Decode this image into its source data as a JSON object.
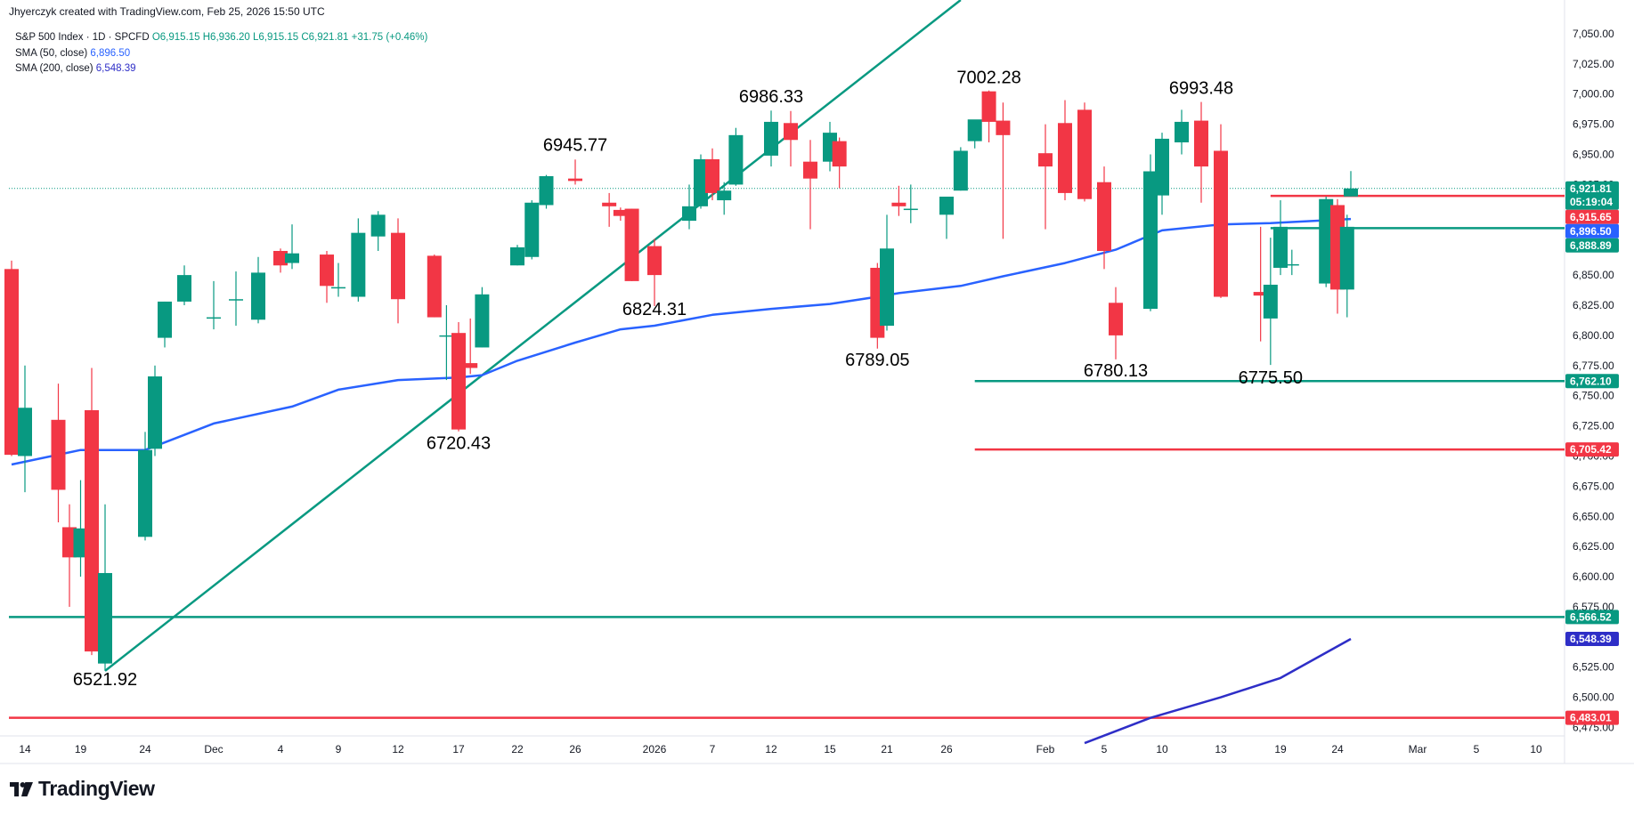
{
  "header": {
    "attribution": "Jhyerczyk created with TradingView.com, Feb 25, 2026 15:50 UTC"
  },
  "legend": {
    "symbol": "S&P 500 Index · 1D · SPCFD",
    "ohlc": "O6,915.15 H6,936.20 L6,915.15 C6,921.81 +31.75 (+0.46%)",
    "sma50_label": "SMA (50, close)",
    "sma50_value": "6,896.50",
    "sma200_label": "SMA (200, close)",
    "sma200_value": "6,548.39"
  },
  "brand": {
    "name": "TradingView",
    "logo": "tradingview-logo-icon"
  },
  "colors": {
    "up": "#089981",
    "down": "#f23645",
    "sma50": "#2962ff",
    "sma200": "#2e2ec7",
    "trendline": "#089981",
    "support": "#089981",
    "resistance": "#f23645"
  },
  "chart_data": {
    "type": "candlestick",
    "y_ticks": [
      "7,050.00",
      "7,025.00",
      "7,000.00",
      "6,975.00",
      "6,950.00",
      "6,925.00",
      "6,900.00",
      "6,875.00",
      "6,850.00",
      "6,825.00",
      "6,800.00",
      "6,775.00",
      "6,750.00",
      "6,725.00",
      "6,700.00",
      "6,675.00",
      "6,650.00",
      "6,625.00",
      "6,600.00",
      "6,575.00",
      "6,550.00",
      "6,525.00",
      "6,500.00",
      "6,475.00"
    ],
    "y_tick_values": [
      7050,
      7025,
      7000,
      6975,
      6950,
      6925,
      6900,
      6875,
      6850,
      6825,
      6800,
      6775,
      6750,
      6725,
      6700,
      6675,
      6650,
      6625,
      6600,
      6575,
      6550,
      6525,
      6500,
      6475
    ],
    "ylim": [
      6468,
      7078
    ],
    "x_ticks": [
      {
        "label": "14",
        "date": "2025-11-14"
      },
      {
        "label": "19",
        "date": "2025-11-19"
      },
      {
        "label": "24",
        "date": "2025-11-24"
      },
      {
        "label": "Dec",
        "date": "2025-12-01"
      },
      {
        "label": "4",
        "date": "2025-12-04"
      },
      {
        "label": "9",
        "date": "2025-12-09"
      },
      {
        "label": "12",
        "date": "2025-12-12"
      },
      {
        "label": "17",
        "date": "2025-12-17"
      },
      {
        "label": "22",
        "date": "2025-12-22"
      },
      {
        "label": "26",
        "date": "2025-12-26"
      },
      {
        "label": "2026",
        "date": "2026-01-02"
      },
      {
        "label": "7",
        "date": "2026-01-07"
      },
      {
        "label": "12",
        "date": "2026-01-12"
      },
      {
        "label": "15",
        "date": "2026-01-15"
      },
      {
        "label": "21",
        "date": "2026-01-21"
      },
      {
        "label": "26",
        "date": "2026-01-26"
      },
      {
        "label": "Feb",
        "date": "2026-02-02"
      },
      {
        "label": "5",
        "date": "2026-02-05"
      },
      {
        "label": "10",
        "date": "2026-02-10"
      },
      {
        "label": "13",
        "date": "2026-02-13"
      },
      {
        "label": "19",
        "date": "2026-02-19"
      },
      {
        "label": "24",
        "date": "2026-02-24"
      },
      {
        "label": "Mar",
        "date": "2026-03-02"
      },
      {
        "label": "5",
        "date": "2026-03-05"
      },
      {
        "label": "10",
        "date": "2026-03-10"
      }
    ],
    "candles": [
      {
        "d": "2025-11-13",
        "o": 6855,
        "h": 6862,
        "l": 6700,
        "c": 6701
      },
      {
        "d": "2025-11-14",
        "o": 6700,
        "h": 6775,
        "l": 6670,
        "c": 6740
      },
      {
        "d": "2025-11-17",
        "o": 6730,
        "h": 6760,
        "l": 6645,
        "c": 6672
      },
      {
        "d": "2025-11-18",
        "o": 6641,
        "h": 6660,
        "l": 6575,
        "c": 6616
      },
      {
        "d": "2025-11-19",
        "o": 6616,
        "h": 6680,
        "l": 6600,
        "c": 6640
      },
      {
        "d": "2025-11-20",
        "o": 6738,
        "h": 6773,
        "l": 6535,
        "c": 6538
      },
      {
        "d": "2025-11-21",
        "o": 6528,
        "h": 6660,
        "l": 6521.92,
        "c": 6603
      },
      {
        "d": "2025-11-24",
        "o": 6633,
        "h": 6720,
        "l": 6630,
        "c": 6705
      },
      {
        "d": "2025-11-25",
        "o": 6706,
        "h": 6775,
        "l": 6700,
        "c": 6766
      },
      {
        "d": "2025-11-26",
        "o": 6798,
        "h": 6828,
        "l": 6790,
        "c": 6828
      },
      {
        "d": "2025-11-28",
        "o": 6828,
        "h": 6858,
        "l": 6825,
        "c": 6850
      },
      {
        "d": "2025-12-01",
        "o": 6815,
        "h": 6845,
        "l": 6805,
        "c": 6815
      },
      {
        "d": "2025-12-02",
        "o": 6830,
        "h": 6853,
        "l": 6808,
        "c": 6830
      },
      {
        "d": "2025-12-03",
        "o": 6813,
        "h": 6865,
        "l": 6810,
        "c": 6852
      },
      {
        "d": "2025-12-04",
        "o": 6870,
        "h": 6872,
        "l": 6852,
        "c": 6858
      },
      {
        "d": "2025-12-05",
        "o": 6860,
        "h": 6892,
        "l": 6855,
        "c": 6868
      },
      {
        "d": "2025-12-08",
        "o": 6867,
        "h": 6870,
        "l": 6827,
        "c": 6841
      },
      {
        "d": "2025-12-09",
        "o": 6840,
        "h": 6860,
        "l": 6832,
        "c": 6840
      },
      {
        "d": "2025-12-10",
        "o": 6832,
        "h": 6897,
        "l": 6828,
        "c": 6885
      },
      {
        "d": "2025-12-11",
        "o": 6882,
        "h": 6903,
        "l": 6870,
        "c": 6900
      },
      {
        "d": "2025-12-12",
        "o": 6885,
        "h": 6897,
        "l": 6810,
        "c": 6830
      },
      {
        "d": "2025-12-15",
        "o": 6866,
        "h": 6867,
        "l": 6815,
        "c": 6815
      },
      {
        "d": "2025-12-16",
        "o": 6800,
        "h": 6825,
        "l": 6763,
        "c": 6800
      },
      {
        "d": "2025-12-17",
        "o": 6802,
        "h": 6811,
        "l": 6720.43,
        "c": 6722
      },
      {
        "d": "2025-12-18",
        "o": 6777,
        "h": 6814,
        "l": 6768,
        "c": 6773
      },
      {
        "d": "2025-12-19",
        "o": 6790,
        "h": 6840,
        "l": 6790,
        "c": 6834
      },
      {
        "d": "2025-12-22",
        "o": 6858,
        "h": 6875,
        "l": 6858,
        "c": 6873
      },
      {
        "d": "2025-12-23",
        "o": 6865,
        "h": 6912,
        "l": 6863,
        "c": 6910
      },
      {
        "d": "2025-12-24",
        "o": 6908,
        "h": 6933,
        "l": 6905,
        "c": 6932
      },
      {
        "d": "2025-12-26",
        "o": 6930,
        "h": 6945.77,
        "l": 6925,
        "c": 6928
      },
      {
        "d": "2025-12-29",
        "o": 6910,
        "h": 6918,
        "l": 6890,
        "c": 6907
      },
      {
        "d": "2025-12-30",
        "o": 6904,
        "h": 6906,
        "l": 6895,
        "c": 6899
      },
      {
        "d": "2025-12-31",
        "o": 6905,
        "h": 6905,
        "l": 6845,
        "c": 6845
      },
      {
        "d": "2026-01-02",
        "o": 6874,
        "h": 6880,
        "l": 6824.31,
        "c": 6850
      },
      {
        "d": "2026-01-05",
        "o": 6895,
        "h": 6925,
        "l": 6888,
        "c": 6907
      },
      {
        "d": "2026-01-06",
        "o": 6907,
        "h": 6950,
        "l": 6905,
        "c": 6946
      },
      {
        "d": "2026-01-07",
        "o": 6946,
        "h": 6955,
        "l": 6912,
        "c": 6918
      },
      {
        "d": "2026-01-08",
        "o": 6912,
        "h": 6927,
        "l": 6900,
        "c": 6920
      },
      {
        "d": "2026-01-09",
        "o": 6925,
        "h": 6972,
        "l": 6924,
        "c": 6966
      },
      {
        "d": "2026-01-12",
        "o": 6949,
        "h": 6986.33,
        "l": 6940,
        "c": 6977
      },
      {
        "d": "2026-01-13",
        "o": 6976,
        "h": 6986,
        "l": 6940,
        "c": 6962
      },
      {
        "d": "2026-01-14",
        "o": 6944,
        "h": 6962,
        "l": 6888,
        "c": 6930
      },
      {
        "d": "2026-01-15",
        "o": 6944,
        "h": 6977,
        "l": 6936,
        "c": 6968
      },
      {
        "d": "2026-01-16",
        "o": 6961,
        "h": 6964,
        "l": 6922,
        "c": 6940
      },
      {
        "d": "2026-01-20",
        "o": 6856,
        "h": 6860,
        "l": 6789.05,
        "c": 6798
      },
      {
        "d": "2026-01-21",
        "o": 6808,
        "h": 6900,
        "l": 6804,
        "c": 6872
      },
      {
        "d": "2026-01-22",
        "o": 6910,
        "h": 6924,
        "l": 6899,
        "c": 6907
      },
      {
        "d": "2026-01-23",
        "o": 6905,
        "h": 6925,
        "l": 6893,
        "c": 6905
      },
      {
        "d": "2026-01-26",
        "o": 6900,
        "h": 6912,
        "l": 6880,
        "c": 6915
      },
      {
        "d": "2026-01-27",
        "o": 6920,
        "h": 6956,
        "l": 6920,
        "c": 6953
      },
      {
        "d": "2026-01-28",
        "o": 6961,
        "h": 6978,
        "l": 6955,
        "c": 6979
      },
      {
        "d": "2026-01-29",
        "o": 7002.28,
        "h": 7003,
        "l": 6960,
        "c": 6977
      },
      {
        "d": "2026-01-30",
        "o": 6978,
        "h": 6993,
        "l": 6880,
        "c": 6966
      },
      {
        "d": "2026-02-02",
        "o": 6951,
        "h": 6975,
        "l": 6888,
        "c": 6940
      },
      {
        "d": "2026-02-03",
        "o": 6976,
        "h": 6995,
        "l": 6912,
        "c": 6918
      },
      {
        "d": "2026-02-04",
        "o": 6987,
        "h": 6993,
        "l": 6911,
        "c": 6913
      },
      {
        "d": "2026-02-05",
        "o": 6927,
        "h": 6940,
        "l": 6855,
        "c": 6870
      },
      {
        "d": "2026-02-06",
        "o": 6827,
        "h": 6840,
        "l": 6780.13,
        "c": 6800
      },
      {
        "d": "2026-02-09",
        "o": 6822,
        "h": 6950,
        "l": 6820,
        "c": 6936
      },
      {
        "d": "2026-02-10",
        "o": 6916,
        "h": 6968,
        "l": 6900,
        "c": 6963
      },
      {
        "d": "2026-02-11",
        "o": 6960,
        "h": 6987,
        "l": 6950,
        "c": 6977
      },
      {
        "d": "2026-02-12",
        "o": 6978,
        "h": 6993.48,
        "l": 6910,
        "c": 6940
      },
      {
        "d": "2026-02-13",
        "o": 6953,
        "h": 6975,
        "l": 6831,
        "c": 6832
      },
      {
        "d": "2026-02-17",
        "o": 6836,
        "h": 6890,
        "l": 6795,
        "c": 6833
      },
      {
        "d": "2026-02-18",
        "o": 6814,
        "h": 6881,
        "l": 6775.5,
        "c": 6842
      },
      {
        "d": "2026-02-19",
        "o": 6856,
        "h": 6912,
        "l": 6850,
        "c": 6890
      },
      {
        "d": "2026-02-20",
        "o": 6859,
        "h": 6871,
        "l": 6850,
        "c": 6859
      },
      {
        "d": "2026-02-23",
        "o": 6843,
        "h": 6915,
        "l": 6840,
        "c": 6913
      },
      {
        "d": "2026-02-24",
        "o": 6908,
        "h": 6913,
        "l": 6818,
        "c": 6838
      },
      {
        "d": "2026-02-24b",
        "o": 6838,
        "h": 6900,
        "l": 6815,
        "c": 6890
      },
      {
        "d": "2026-02-25",
        "o": 6915.15,
        "h": 6936.2,
        "l": 6915.15,
        "c": 6921.81
      }
    ],
    "sma50": [
      {
        "d": "2025-11-13",
        "v": 6693
      },
      {
        "d": "2025-11-19",
        "v": 6705
      },
      {
        "d": "2025-11-24",
        "v": 6705
      },
      {
        "d": "2025-12-01",
        "v": 6727
      },
      {
        "d": "2025-12-05",
        "v": 6741
      },
      {
        "d": "2025-12-09",
        "v": 6755
      },
      {
        "d": "2025-12-12",
        "v": 6763
      },
      {
        "d": "2025-12-17",
        "v": 6765
      },
      {
        "d": "2025-12-19",
        "v": 6767
      },
      {
        "d": "2025-12-22",
        "v": 6779
      },
      {
        "d": "2025-12-26",
        "v": 6794
      },
      {
        "d": "2025-12-30",
        "v": 6805
      },
      {
        "d": "2026-01-02",
        "v": 6808
      },
      {
        "d": "2026-01-07",
        "v": 6817
      },
      {
        "d": "2026-01-12",
        "v": 6822
      },
      {
        "d": "2026-01-15",
        "v": 6826
      },
      {
        "d": "2026-01-20",
        "v": 6832
      },
      {
        "d": "2026-01-22",
        "v": 6835
      },
      {
        "d": "2026-01-27",
        "v": 6841
      },
      {
        "d": "2026-01-30",
        "v": 6849
      },
      {
        "d": "2026-02-03",
        "v": 6860
      },
      {
        "d": "2026-02-06",
        "v": 6871
      },
      {
        "d": "2026-02-10",
        "v": 6887
      },
      {
        "d": "2026-02-13",
        "v": 6892
      },
      {
        "d": "2026-02-18",
        "v": 6893
      },
      {
        "d": "2026-02-20",
        "v": 6894
      },
      {
        "d": "2026-02-25",
        "v": 6896.5
      }
    ],
    "sma200": [
      {
        "d": "2026-02-04",
        "v": 6462
      },
      {
        "d": "2026-02-09",
        "v": 6483
      },
      {
        "d": "2026-02-13",
        "v": 6500
      },
      {
        "d": "2026-02-19",
        "v": 6516
      },
      {
        "d": "2026-02-25",
        "v": 6548.39
      }
    ],
    "trendline": [
      {
        "d": "2025-11-21",
        "v": 6521.92
      },
      {
        "d": "2026-01-27",
        "v": 7078
      }
    ],
    "hlines": [
      {
        "v": 6915.65,
        "tag": "6,915.65",
        "color": "#f23645",
        "from": "2026-02-18",
        "to": "2026-03-10"
      },
      {
        "v": 6888.89,
        "tag": "6,888.89",
        "color": "#089981",
        "from": "2026-02-18",
        "to": "2026-03-10"
      },
      {
        "v": 6762.1,
        "tag": "6,762.10",
        "color": "#089981",
        "from": "2026-01-28",
        "to": "2026-03-10"
      },
      {
        "v": 6705.42,
        "tag": "6,705.42",
        "color": "#f23645",
        "from": "2026-01-28",
        "to": "2026-03-10"
      },
      {
        "v": 6566.52,
        "tag": "6,566.52",
        "color": "#089981",
        "from": "full",
        "to": "2026-03-10"
      },
      {
        "v": 6483.01,
        "tag": "6,483.01",
        "color": "#f23645",
        "from": "full",
        "to": "2026-03-10"
      }
    ],
    "last_price": {
      "v": 6921.81,
      "tag": "6,921.81",
      "countdown": "05:19:04"
    },
    "value_tags": [
      {
        "v": 6896.5,
        "tag": "6,896.50",
        "color": "#2962ff"
      },
      {
        "v": 6548.39,
        "tag": "6,548.39",
        "color": "#2e2ec7"
      }
    ],
    "annotations": [
      {
        "text": "6521.92",
        "d": "2025-11-21",
        "v": 6510
      },
      {
        "text": "6720.43",
        "d": "2025-12-17",
        "v": 6706
      },
      {
        "text": "6945.77",
        "d": "2025-12-26",
        "v": 6953
      },
      {
        "text": "6824.31",
        "d": "2026-01-02",
        "v": 6817
      },
      {
        "text": "6986.33",
        "d": "2026-01-12",
        "v": 6993
      },
      {
        "text": "6789.05",
        "d": "2026-01-20",
        "v": 6775
      },
      {
        "text": "7002.28",
        "d": "2026-01-29",
        "v": 7009
      },
      {
        "text": "6780.13",
        "d": "2026-02-06",
        "v": 6766
      },
      {
        "text": "6993.48",
        "d": "2026-02-12",
        "v": 7000
      },
      {
        "text": "6775.50",
        "d": "2026-02-18",
        "v": 6760
      }
    ]
  }
}
